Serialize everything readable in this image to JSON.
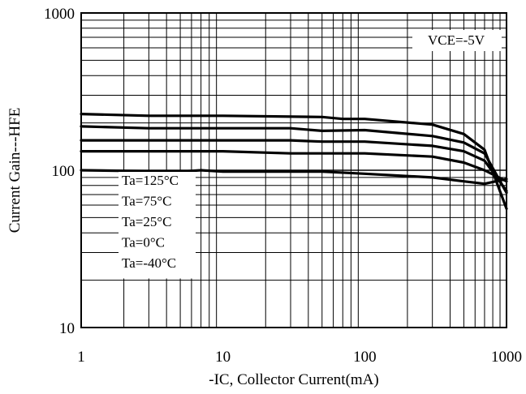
{
  "chart_data": {
    "type": "line",
    "xlabel": "-IC, Collector Current(mA)",
    "ylabel": "Current Gain---HFE",
    "x_scale": "log",
    "y_scale": "log",
    "xlim": [
      1,
      1000
    ],
    "ylim": [
      10,
      1000
    ],
    "x_ticks": [
      {
        "value": 1,
        "label": "1"
      },
      {
        "value": 10,
        "label": "10"
      },
      {
        "value": 100,
        "label": "100"
      },
      {
        "value": 1000,
        "label": "1000"
      }
    ],
    "y_ticks": [
      {
        "value": 10,
        "label": "10"
      },
      {
        "value": 100,
        "label": "100"
      },
      {
        "value": 1000,
        "label": "1000"
      }
    ],
    "grid": true,
    "annotation": "VCE=-5V",
    "legend_position": "bottom-left",
    "series": [
      {
        "name": "Ta=125°C",
        "x": [
          1,
          3,
          10,
          50,
          70,
          100,
          300,
          500,
          700,
          1000
        ],
        "y": [
          228,
          222,
          222,
          218,
          212,
          212,
          195,
          170,
          135,
          57
        ]
      },
      {
        "name": "Ta=75°C",
        "x": [
          1,
          3,
          10,
          30,
          50,
          100,
          300,
          500,
          700,
          1000
        ],
        "y": [
          190,
          185,
          185,
          185,
          178,
          180,
          165,
          150,
          128,
          72
        ]
      },
      {
        "name": "Ta=25°C",
        "x": [
          1,
          3,
          10,
          30,
          50,
          100,
          300,
          500,
          700,
          1000
        ],
        "y": [
          155,
          155,
          155,
          155,
          152,
          152,
          143,
          132,
          115,
          74
        ]
      },
      {
        "name": "Ta=0°C",
        "x": [
          1,
          10,
          30,
          100,
          300,
          500,
          700,
          1000
        ],
        "y": [
          132,
          132,
          128,
          128,
          122,
          112,
          100,
          85
        ]
      },
      {
        "name": "Ta=-40°C",
        "x": [
          1,
          5,
          7,
          10,
          50,
          100,
          300,
          500,
          700,
          1000
        ],
        "y": [
          100,
          98,
          100,
          98,
          98,
          95,
          90,
          85,
          82,
          88
        ]
      }
    ]
  }
}
